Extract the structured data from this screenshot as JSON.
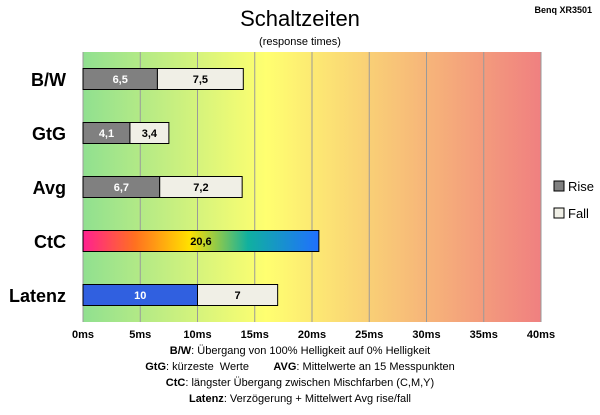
{
  "header": {
    "title": "Schaltzeiten",
    "subtitle": "(response times)",
    "brand": "Benq XR3501"
  },
  "chart_data": {
    "type": "bar",
    "orientation": "horizontal",
    "stacked": true,
    "categories": [
      "B/W",
      "GtG",
      "Avg",
      "CtC",
      "Latenz"
    ],
    "series": [
      {
        "name": "Rise",
        "values": [
          6.5,
          4.1,
          6.7,
          20.6,
          10
        ],
        "labels": [
          "6,5",
          "4,1",
          "6,7",
          "20,6",
          "10"
        ],
        "color": "#808080"
      },
      {
        "name": "Fall",
        "values": [
          7.5,
          3.4,
          7.2,
          null,
          7
        ],
        "labels": [
          "7,5",
          "3,4",
          "7,2",
          "",
          "7"
        ],
        "color": "#f0efe6"
      }
    ],
    "xlim": [
      0,
      40
    ],
    "xticks": [
      "0ms",
      "5ms",
      "10ms",
      "15ms",
      "20ms",
      "25ms",
      "30ms",
      "35ms",
      "40ms"
    ],
    "xtick_values": [
      0,
      5,
      10,
      15,
      20,
      25,
      30,
      35,
      40
    ],
    "grid": true,
    "legend": "right",
    "background_gradient": [
      "#90e090",
      "#ffff70",
      "#f08080"
    ],
    "special_bars": {
      "CtC": "rainbow",
      "Latenz": "blue"
    },
    "latency_bar_color": "#3060e0"
  },
  "notes": [
    {
      "label": "B/W",
      "text": ":  Übergang von 100% Helligkeit auf 0% Helligkeit"
    },
    {
      "label": "GtG",
      "text": ": kürzeste  Werte        ",
      "label2": "AVG",
      "text2": ": Mittelwerte  an 15 Messpunkten"
    },
    {
      "label": "CtC",
      "text": ": längster Übergang  zwischen Mischfarben  (C,M,Y)"
    },
    {
      "label": "Latenz",
      "text": ": Verzögerung  + Mittelwert Avg rise/fall"
    }
  ]
}
